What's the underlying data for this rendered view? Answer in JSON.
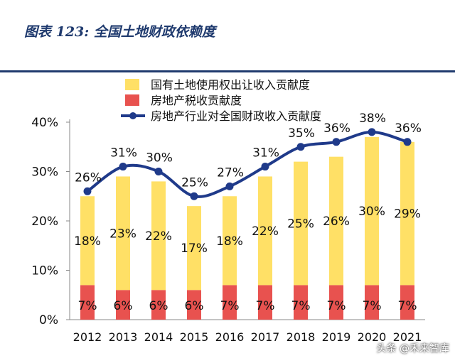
{
  "figure": {
    "title": "图表 123:  全国土地财政依赖度",
    "watermark": "头条 @禾来智库"
  },
  "colors": {
    "bar_top": "#ffe066",
    "bar_bottom": "#e8524f",
    "line": "#1f3a8a",
    "title": "#1f3a6e"
  },
  "chart_data": {
    "type": "bar",
    "categories": [
      "2012",
      "2013",
      "2014",
      "2015",
      "2016",
      "2017",
      "2018",
      "2019",
      "2020",
      "2021"
    ],
    "series": [
      {
        "name": "国有土地使用权出让收入贡献度",
        "kind": "stacked-bar",
        "values": [
          18,
          23,
          22,
          17,
          18,
          22,
          25,
          26,
          30,
          29
        ],
        "labels": [
          "18%",
          "23%",
          "22%",
          "17%",
          "18%",
          "22%",
          "25%",
          "26%",
          "30%",
          "29%"
        ]
      },
      {
        "name": "房地产税收贡献度",
        "kind": "stacked-bar",
        "values": [
          7,
          6,
          6,
          6,
          7,
          7,
          7,
          7,
          7,
          7
        ],
        "labels": [
          "7%",
          "6%",
          "6%",
          "6%",
          "7%",
          "7%",
          "7%",
          "7%",
          "7%",
          "7%"
        ]
      },
      {
        "name": "房地产行业对全国财政收入贡献度",
        "kind": "line",
        "values": [
          26,
          31,
          30,
          25,
          27,
          31,
          35,
          36,
          38,
          36
        ],
        "labels": [
          "26%",
          "31%",
          "30%",
          "25%",
          "27%",
          "31%",
          "35%",
          "36%",
          "38%",
          "36%"
        ]
      }
    ],
    "ylim": [
      0,
      40
    ],
    "yticks": [
      "0%",
      "10%",
      "20%",
      "30%",
      "40%"
    ],
    "legend": "top-center",
    "grid": false
  }
}
